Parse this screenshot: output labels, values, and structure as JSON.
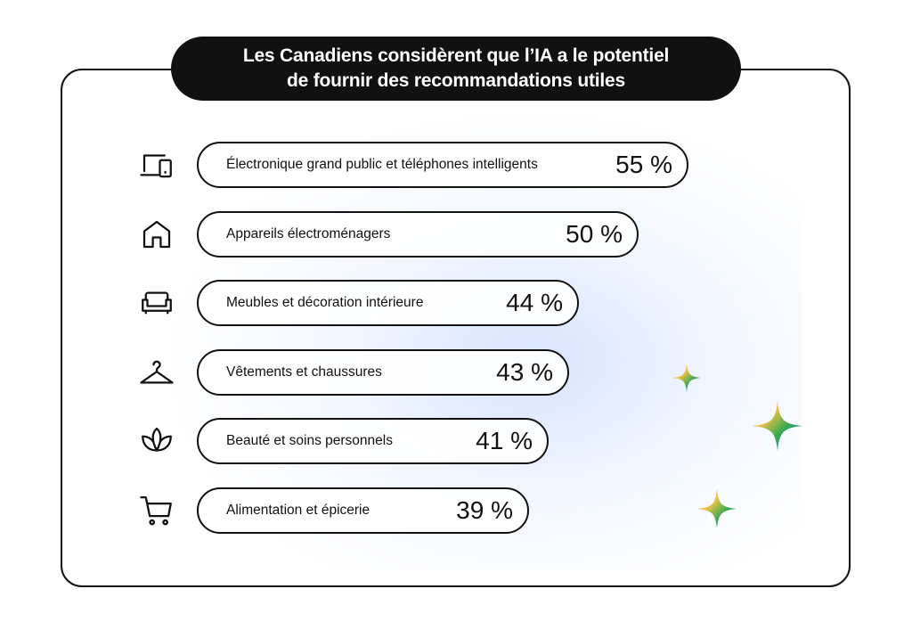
{
  "title": "Les Canadiens considèrent que l’IA a le potentiel\nde fournir des recommandations utiles",
  "chart_data": {
    "type": "bar",
    "title": "Les Canadiens considèrent que l’IA a le potentiel de fournir des recommandations utiles",
    "unit": "%",
    "categories": [
      "Électronique grand public et téléphones intelligents",
      "Appareils électroménagers",
      "Meubles et décoration intérieure",
      "Vêtements et chaussures",
      "Beauté et soins personnels",
      "Alimentation et épicerie"
    ],
    "values": [
      55,
      50,
      44,
      43,
      41,
      39
    ],
    "value_labels": [
      "55 %",
      "50 %",
      "44 %",
      "43 %",
      "41 %",
      "39 %"
    ],
    "icons": [
      "devices-icon",
      "home-icon",
      "sofa-icon",
      "hanger-icon",
      "lotus-icon",
      "cart-icon"
    ]
  },
  "colors": {
    "ink": "#111111",
    "sparkle_blue": "#4f86f7",
    "sparkle_red": "#e94b3c",
    "sparkle_yellow": "#f6c343",
    "sparkle_green": "#34a853"
  }
}
